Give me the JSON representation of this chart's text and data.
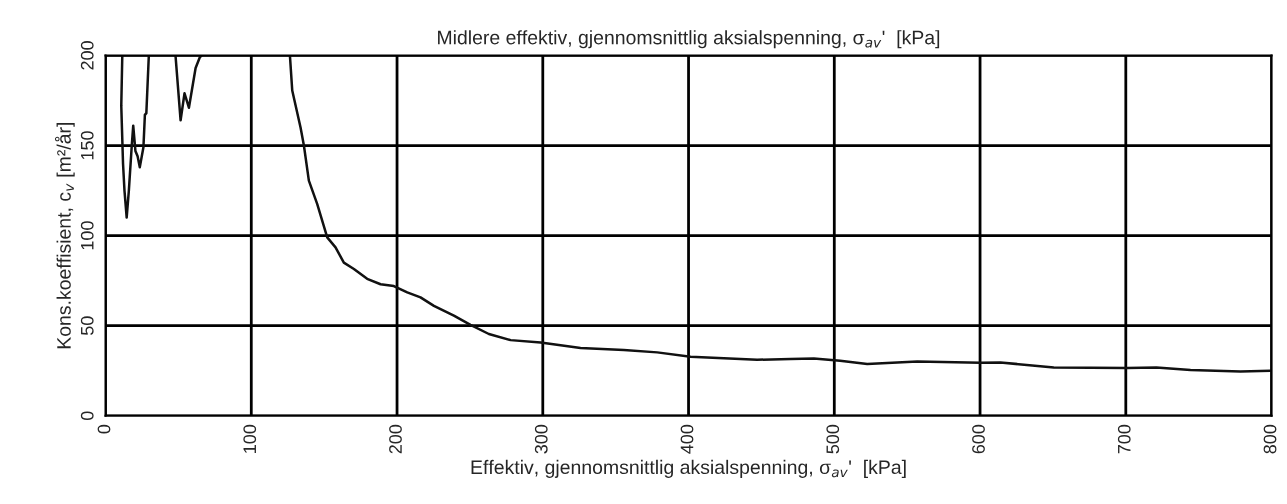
{
  "chart_data": {
    "type": "line",
    "title": "Midlere effektiv, gjennomsnittlig aksialspenning, σ$_{av}$'  [kPa]",
    "xlabel": "Effektiv, gjennomsnittlig aksialspenning, σ$_{av}$'  [kPa]",
    "ylabel": "Kons.koeffisient, c$_{v}$ [m²/år]",
    "x": [
      11.5,
      10.8,
      12,
      13,
      14.5,
      16,
      18,
      19,
      20.5,
      22,
      23.5,
      26,
      27,
      28,
      29.7,
      38,
      48,
      51.5,
      54.2,
      57.2,
      61.8,
      64.7,
      66,
      96,
      126.5,
      128.1,
      133.8,
      136.1,
      139.5,
      145.2,
      152.1,
      157.8,
      163.5,
      170.4,
      179.5,
      188.7,
      197.8,
      207,
      216.1,
      225.3,
      239,
      250.4,
      263,
      277.9,
      298.5,
      325.9,
      355.6,
      378.5,
      401.4,
      424.2,
      447.1,
      470,
      486,
      504,
      522.6,
      556.9,
      600.3,
      614,
      650.6,
      701,
      721,
      744.4,
      778.7,
      799.3
    ],
    "series": [
      {
        "color": "#111111",
        "values": [
          200,
          172,
          140,
          125,
          110,
          125,
          150,
          161,
          147,
          144,
          138,
          149,
          167,
          168,
          200,
          null,
          200,
          164,
          179,
          171,
          193,
          199,
          200,
          null,
          200,
          180.5,
          160,
          150,
          130.5,
          117.6,
          99,
          93.5,
          85,
          81.5,
          76,
          73,
          72,
          68.5,
          65.7,
          61,
          55.6,
          50.5,
          45.4,
          42,
          40.7,
          37.6,
          36.5,
          35.2,
          32.8,
          32,
          31.1,
          31.5,
          31.8,
          30.5,
          28.7,
          30.2,
          29.4,
          29.6,
          26.8,
          26.5,
          26.8,
          25.4,
          24.6,
          25
        ]
      }
    ],
    "xlim": [
      0,
      800
    ],
    "xticks": [
      0,
      100,
      200,
      300,
      400,
      500,
      600,
      700,
      800
    ],
    "ylim": [
      0,
      200
    ],
    "yticks": [
      0,
      50,
      100,
      150,
      200
    ],
    "grid": true,
    "marker": "none",
    "line_style": "solid"
  }
}
